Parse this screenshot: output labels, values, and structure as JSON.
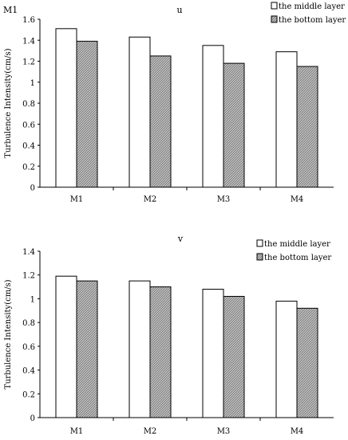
{
  "figure_label": "M1",
  "chart_data": [
    {
      "type": "bar",
      "title": "u",
      "categories": [
        "M1",
        "M2",
        "M3",
        "M4"
      ],
      "series": [
        {
          "name": "the middle layer",
          "values": [
            1.51,
            1.43,
            1.35,
            1.29
          ],
          "color": "#ffffff"
        },
        {
          "name": "the bottom layer",
          "values": [
            1.39,
            1.25,
            1.18,
            1.15
          ],
          "color": "hatched-gray"
        }
      ],
      "ylabel": "Turbulence Intensity(cm/s)",
      "xlabel": "",
      "ylim": [
        0,
        1.6
      ],
      "yticks": [
        "0",
        "0.2",
        "0.4",
        "0.6",
        "0.8",
        "1",
        "1.2",
        "1.4",
        "1.6"
      ],
      "grid": false,
      "legend": "top-right"
    },
    {
      "type": "bar",
      "title": "v",
      "categories": [
        "M1",
        "M2",
        "M3",
        "M4"
      ],
      "series": [
        {
          "name": "the middle layer",
          "values": [
            1.19,
            1.15,
            1.08,
            0.98
          ],
          "color": "#ffffff"
        },
        {
          "name": "the bottom layer",
          "values": [
            1.15,
            1.1,
            1.02,
            0.92
          ],
          "color": "hatched-gray"
        }
      ],
      "ylabel": "Turbulence Intensity(cm/s)",
      "xlabel": "",
      "ylim": [
        0,
        1.4
      ],
      "yticks": [
        "0",
        "0.2",
        "0.4",
        "0.6",
        "0.8",
        "1",
        "1.2",
        "1.4"
      ],
      "grid": false,
      "legend": "top-right"
    }
  ]
}
